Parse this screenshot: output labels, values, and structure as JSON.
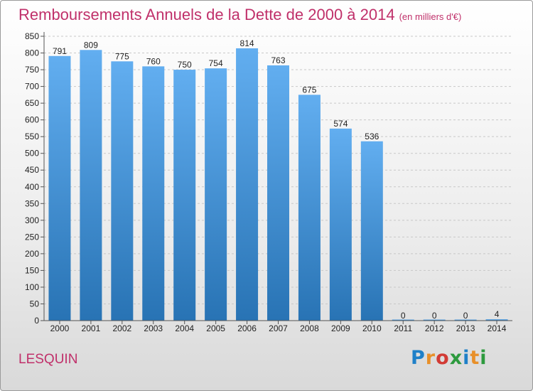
{
  "title": "Remboursements Annuels de la Dette de 2000 à 2014",
  "subtitle": "(en milliers d'€)",
  "location": "LESQUIN",
  "brand": {
    "letters": [
      "P",
      "r",
      "o",
      "x",
      "i",
      "t",
      "i"
    ]
  },
  "colors": {
    "title": "#c0306a",
    "bar_top": "#62aef0",
    "bar_bottom": "#2873b4"
  },
  "chart_data": {
    "type": "bar",
    "title": "Remboursements Annuels de la Dette de 2000 à 2014",
    "xlabel": "",
    "ylabel": "",
    "categories": [
      "2000",
      "2001",
      "2002",
      "2003",
      "2004",
      "2005",
      "2006",
      "2007",
      "2008",
      "2009",
      "2010",
      "2011",
      "2012",
      "2013",
      "2014"
    ],
    "values": [
      791,
      809,
      775,
      760,
      750,
      754,
      814,
      763,
      675,
      574,
      536,
      0,
      0,
      0,
      4
    ],
    "ylim": [
      0,
      850
    ],
    "yticks": [
      0,
      50,
      100,
      150,
      200,
      250,
      300,
      350,
      400,
      450,
      500,
      550,
      600,
      650,
      700,
      750,
      800,
      850
    ],
    "grid": true
  }
}
